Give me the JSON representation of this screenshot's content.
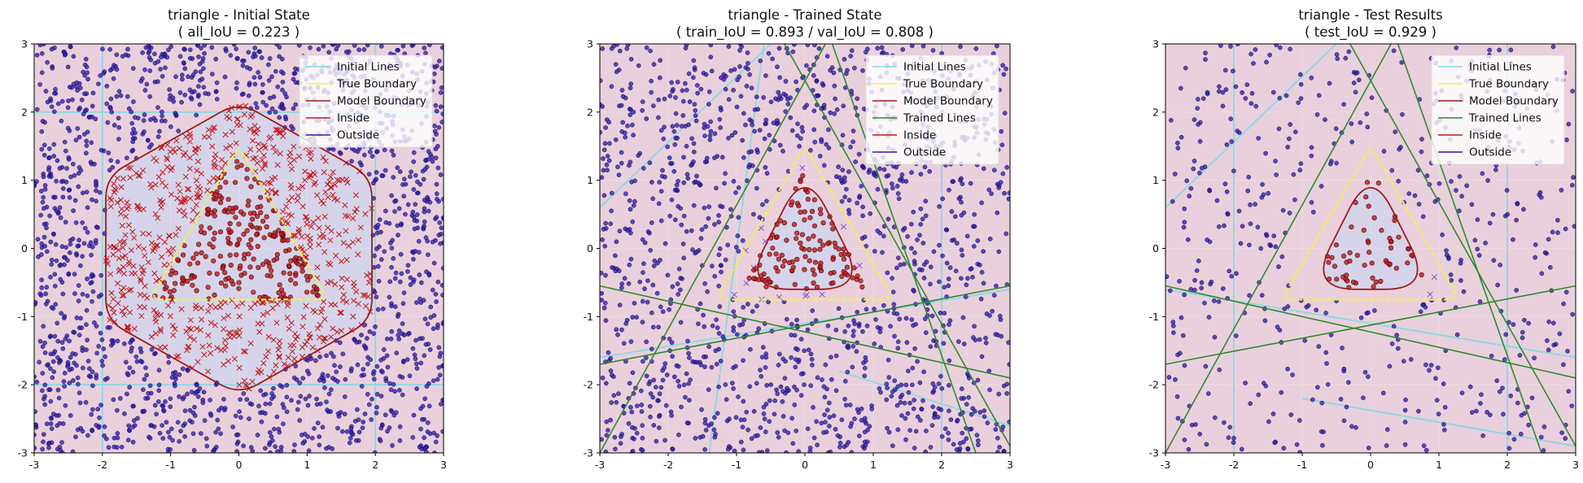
{
  "chart_data": [
    {
      "type": "scatter",
      "title": "triangle - Initial State",
      "subtitle": "( all_IoU = 0.223 )",
      "xlim": [
        -3,
        3
      ],
      "ylim": [
        -3,
        3
      ],
      "xticks": [
        "-3",
        "-2",
        "-1",
        "0",
        "1",
        "2",
        "3"
      ],
      "yticks": [
        "-3",
        "-2",
        "-1",
        "0",
        "1",
        "2",
        "3"
      ],
      "legend_position": "upper right",
      "legend": [
        "Initial Lines",
        "True Boundary",
        "Model Boundary",
        "Inside",
        "Outside"
      ],
      "true_boundary": [
        [
          0,
          1.5
        ],
        [
          -1.3,
          -0.75
        ],
        [
          1.3,
          -0.75
        ]
      ],
      "model_boundary": [
        [
          0,
          2.15
        ],
        [
          1.95,
          1.05
        ],
        [
          1.95,
          -1.05
        ],
        [
          0,
          -2.15
        ],
        [
          -1.95,
          -1.05
        ],
        [
          -1.95,
          1.05
        ]
      ],
      "initial_lines": [
        {
          "kind": "v",
          "x": -2.0
        },
        {
          "kind": "v",
          "x": 2.0
        },
        {
          "kind": "h",
          "y": 2.0
        },
        {
          "kind": "h",
          "y": -2.0
        }
      ],
      "trained_lines": [],
      "point_counts": {
        "outside": 1500,
        "inside": 230,
        "misclassified": 600
      },
      "misclassified_region": "model",
      "seed": 11
    },
    {
      "type": "scatter",
      "title": "triangle - Trained State",
      "subtitle": "( train_IoU = 0.893 / val_IoU = 0.808 )",
      "xlim": [
        -3,
        3
      ],
      "ylim": [
        -3,
        3
      ],
      "xticks": [
        "-3",
        "-2",
        "-1",
        "0",
        "1",
        "2",
        "3"
      ],
      "yticks": [
        "-3",
        "-2",
        "-1",
        "0",
        "1",
        "2",
        "3"
      ],
      "legend_position": "upper right",
      "legend": [
        "Initial Lines",
        "True Boundary",
        "Model Boundary",
        "Trained Lines",
        "Inside",
        "Outside"
      ],
      "true_boundary": [
        [
          0,
          1.5
        ],
        [
          -1.3,
          -0.75
        ],
        [
          1.3,
          -0.75
        ]
      ],
      "model_boundary": [
        [
          0,
          1.2
        ],
        [
          0.9,
          -0.6
        ],
        [
          -0.9,
          -0.6
        ]
      ],
      "initial_lines": [
        {
          "kind": "seg",
          "p": [
            [
              -3,
              0.6
            ],
            [
              -0.5,
              3
            ]
          ]
        },
        {
          "kind": "seg",
          "p": [
            [
              -3,
              -1.6
            ],
            [
              3,
              -0.6
            ]
          ]
        },
        {
          "kind": "v",
          "x": 2.0
        },
        {
          "kind": "seg",
          "p": [
            [
              -1.4,
              -3
            ],
            [
              -0.6,
              3
            ]
          ]
        },
        {
          "kind": "seg",
          "p": [
            [
              0.5,
              -1.8
            ],
            [
              3,
              -2.6
            ]
          ]
        }
      ],
      "trained_lines": [
        {
          "p": [
            [
              -3,
              -3
            ],
            [
              0.3,
              3
            ]
          ]
        },
        {
          "p": [
            [
              -0.3,
              3
            ],
            [
              3,
              -2.9
            ]
          ]
        },
        {
          "p": [
            [
              -3,
              -0.55
            ],
            [
              3,
              -1.9
            ]
          ]
        },
        {
          "p": [
            [
              -3,
              -1.7
            ],
            [
              3,
              -0.55
            ]
          ]
        },
        {
          "p": [
            [
              0.4,
              3
            ],
            [
              2.5,
              -3
            ]
          ]
        }
      ],
      "point_counts": {
        "outside": 1400,
        "inside": 120,
        "misclassified": 14
      },
      "misclassified_region": "diff",
      "seed": 23
    },
    {
      "type": "scatter",
      "title": "triangle - Test Results",
      "subtitle": "( test_IoU = 0.929 )",
      "xlim": [
        -3,
        3
      ],
      "ylim": [
        -3,
        3
      ],
      "xticks": [
        "-3",
        "-2",
        "-1",
        "0",
        "1",
        "2",
        "3"
      ],
      "yticks": [
        "-3",
        "-2",
        "-1",
        "0",
        "1",
        "2",
        "3"
      ],
      "legend_position": "upper right",
      "legend": [
        "Initial Lines",
        "True Boundary",
        "Model Boundary",
        "Trained Lines",
        "Inside",
        "Outside"
      ],
      "true_boundary": [
        [
          0,
          1.5
        ],
        [
          -1.3,
          -0.75
        ],
        [
          1.3,
          -0.75
        ]
      ],
      "model_boundary": [
        [
          0,
          1.2
        ],
        [
          0.9,
          -0.6
        ],
        [
          -0.9,
          -0.6
        ]
      ],
      "initial_lines": [
        {
          "kind": "seg",
          "p": [
            [
              -3,
              0.6
            ],
            [
              -0.5,
              3
            ]
          ]
        },
        {
          "kind": "v",
          "x": -2.0
        },
        {
          "kind": "v",
          "x": 2.0
        },
        {
          "kind": "seg",
          "p": [
            [
              -3,
              -0.6
            ],
            [
              3,
              -1.6
            ]
          ]
        },
        {
          "kind": "seg",
          "p": [
            [
              -1,
              -2.2
            ],
            [
              3,
              -2.9
            ]
          ]
        }
      ],
      "trained_lines": [
        {
          "p": [
            [
              -3,
              -3
            ],
            [
              0.3,
              3
            ]
          ]
        },
        {
          "p": [
            [
              -0.3,
              3
            ],
            [
              3,
              -2.9
            ]
          ]
        },
        {
          "p": [
            [
              -3,
              -0.55
            ],
            [
              3,
              -1.9
            ]
          ]
        },
        {
          "p": [
            [
              -3,
              -1.7
            ],
            [
              3,
              -0.55
            ]
          ]
        },
        {
          "p": [
            [
              0.4,
              3
            ],
            [
              2.5,
              -3
            ]
          ]
        }
      ],
      "point_counts": {
        "outside": 520,
        "inside": 55,
        "misclassified": 2
      },
      "misclassified_region": "diff",
      "seed": 37
    }
  ],
  "colors": {
    "background": "#ead0dc",
    "model_fill": "#d5d4ea",
    "initial_lines": "#7fdbe6",
    "true_boundary": "#f7f04a",
    "model_boundary": "#a01a1a",
    "trained_lines": "#2e8b2e",
    "inside": "#c21818",
    "outside": "#2a1aa8"
  }
}
